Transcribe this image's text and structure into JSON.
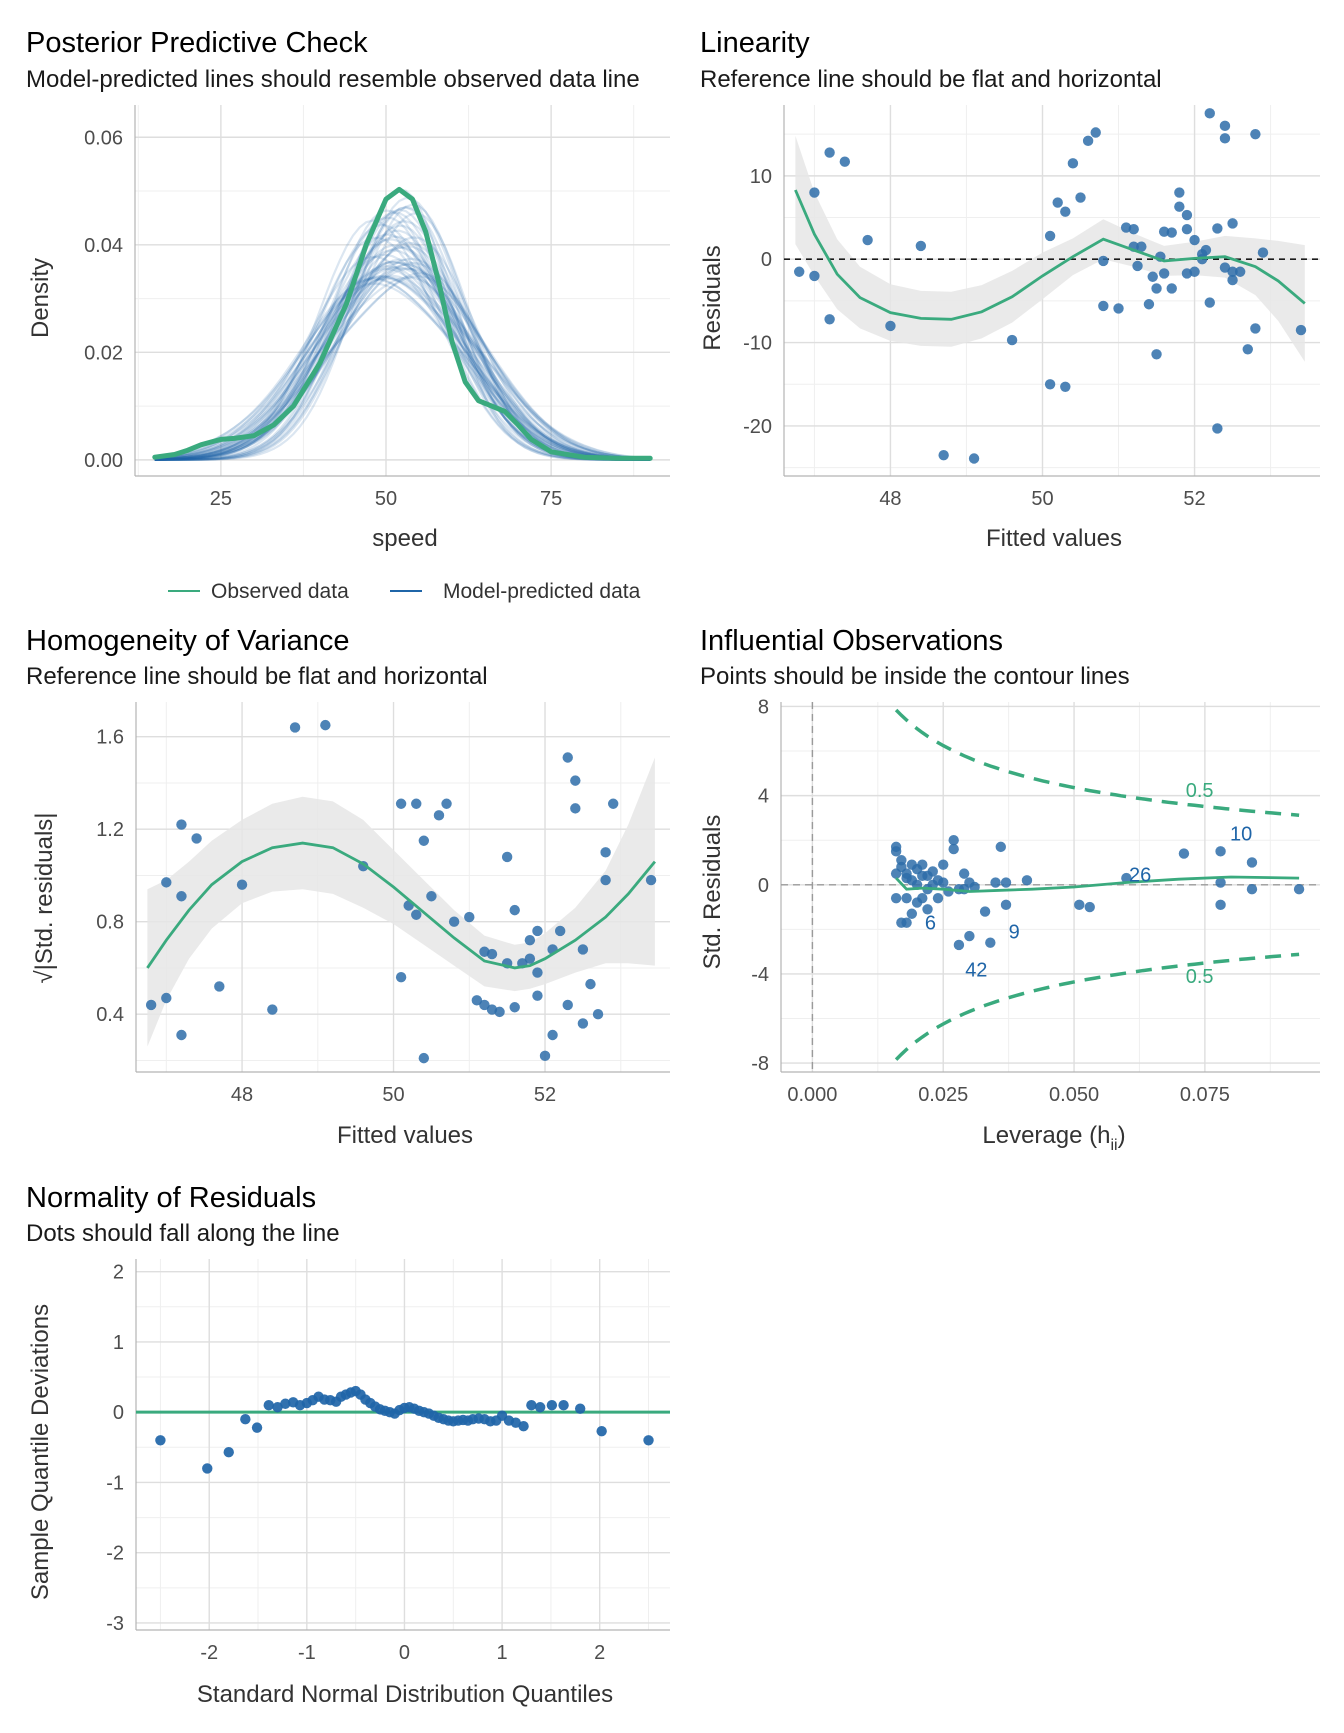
{
  "colors": {
    "observed": "#3aaa7e",
    "predicted": "#1f65a8",
    "points": "#2e6da9",
    "ribbon": "#e6e6e6",
    "reference": "#1a1a1a"
  },
  "chart_data": [
    {
      "id": "ppc",
      "type": "line",
      "title": "Posterior Predictive Check",
      "subtitle": "Model-predicted lines should resemble observed data line",
      "xlabel": "speed",
      "ylabel": "Density",
      "xlim": [
        12,
        93
      ],
      "ylim": [
        -0.003,
        0.066
      ],
      "xticks": [
        25,
        50,
        75
      ],
      "xtick_labels": [
        "25",
        "50",
        "75"
      ],
      "yticks": [
        0.0,
        0.02,
        0.04,
        0.06
      ],
      "ytick_labels": [
        "0.00",
        "0.02",
        "0.04",
        "0.06"
      ],
      "grid": true,
      "legend": {
        "position": "bottom",
        "entries": [
          {
            "label": "Observed data",
            "color": "#3aaa7e"
          },
          {
            "label": "Model-predicted data",
            "color": "#1f65a8"
          }
        ]
      },
      "observed": {
        "name": "Observed data",
        "x": [
          15,
          18,
          20,
          22,
          24,
          25,
          27,
          30,
          33,
          36,
          40,
          44,
          47,
          50,
          52,
          54,
          56,
          58,
          60,
          62,
          64,
          66,
          68,
          70,
          72,
          75,
          80,
          85,
          90
        ],
        "y": [
          0.0005,
          0.001,
          0.0018,
          0.0028,
          0.0035,
          0.0038,
          0.004,
          0.0045,
          0.0065,
          0.01,
          0.018,
          0.029,
          0.04,
          0.0485,
          0.0503,
          0.0485,
          0.0425,
          0.033,
          0.022,
          0.0145,
          0.011,
          0.01,
          0.009,
          0.0065,
          0.0038,
          0.0015,
          0.0005,
          0.0003,
          0.0003
        ]
      },
      "predicted": {
        "name": "Model-predicted data",
        "n_draws": 50,
        "typical_mean": 51.5,
        "typical_sd": 10.2
      }
    },
    {
      "id": "linearity",
      "type": "scatter",
      "title": "Linearity",
      "subtitle": "Reference line should be flat and horizontal",
      "xlabel": "Fitted values",
      "ylabel": "Residuals",
      "xlim": [
        46.6,
        53.65
      ],
      "ylim": [
        -26,
        18.5
      ],
      "xticks": [
        48,
        50,
        52
      ],
      "xtick_labels": [
        "48",
        "50",
        "52"
      ],
      "yticks": [
        -20,
        -10,
        0,
        10
      ],
      "ytick_labels": [
        "-20",
        "-10",
        "0",
        "10"
      ],
      "reference_line": 0,
      "points": {
        "x": [
          46.8,
          47.0,
          47.0,
          47.2,
          47.2,
          47.4,
          47.7,
          48.0,
          48.4,
          48.7,
          49.1,
          49.6,
          50.1,
          50.1,
          50.2,
          50.3,
          50.3,
          50.4,
          50.5,
          50.6,
          50.7,
          50.8,
          50.8,
          51.0,
          51.1,
          51.2,
          51.2,
          51.3,
          51.4,
          51.5,
          51.5,
          51.6,
          51.6,
          51.7,
          51.7,
          51.8,
          51.8,
          51.9,
          51.9,
          51.9,
          52.0,
          52.1,
          52.1,
          52.2,
          52.2,
          52.3,
          52.3,
          52.4,
          52.4,
          52.4,
          52.5,
          52.5,
          52.5,
          52.6,
          52.7,
          52.8,
          52.8,
          52.9,
          53.4,
          51.25,
          51.45,
          51.55,
          52.0,
          52.15
        ],
        "y": [
          -1.5,
          8.0,
          -2.0,
          12.8,
          -7.2,
          11.7,
          2.3,
          -8.0,
          1.6,
          -23.5,
          -23.9,
          -9.7,
          2.8,
          -15.0,
          6.8,
          5.7,
          -15.3,
          11.5,
          7.4,
          14.2,
          15.2,
          -5.6,
          -0.2,
          -5.9,
          3.8,
          1.5,
          3.6,
          1.5,
          -5.4,
          -11.4,
          -3.5,
          3.3,
          -1.7,
          3.2,
          -3.5,
          8.0,
          6.3,
          5.3,
          3.6,
          -1.7,
          -1.5,
          0.0,
          0.6,
          -5.2,
          17.5,
          3.7,
          -20.3,
          14.5,
          -1.0,
          16.0,
          4.3,
          -1.5,
          -2.5,
          -1.5,
          -10.8,
          -8.3,
          15.0,
          0.8,
          -8.5,
          -0.8,
          -2.1,
          0.3,
          2.3,
          1.1
        ]
      },
      "smooth": {
        "x": [
          46.75,
          47.0,
          47.3,
          47.6,
          48.0,
          48.4,
          48.8,
          49.2,
          49.6,
          50.0,
          50.4,
          50.8,
          51.2,
          51.6,
          52.0,
          52.4,
          52.8,
          53.1,
          53.45
        ],
        "y": [
          8.3,
          3.0,
          -1.8,
          -4.6,
          -6.4,
          -7.1,
          -7.2,
          -6.3,
          -4.5,
          -2.0,
          0.3,
          2.4,
          1.1,
          -0.2,
          0.1,
          0.3,
          -0.9,
          -2.6,
          -5.3
        ],
        "se": [
          6.5,
          5.0,
          4.2,
          3.7,
          3.4,
          3.3,
          3.3,
          3.2,
          3.1,
          2.8,
          2.2,
          2.4,
          2.0,
          1.8,
          2.0,
          2.5,
          3.4,
          4.8,
          7.0
        ]
      }
    },
    {
      "id": "homogeneity",
      "type": "scatter",
      "title": "Homogeneity of Variance",
      "subtitle": "Reference line should be flat and horizontal",
      "xlabel": "Fitted values",
      "ylabel": "√|Std. residuals|",
      "xlim": [
        46.6,
        53.65
      ],
      "ylim": [
        0.15,
        1.75
      ],
      "xticks": [
        48,
        50,
        52
      ],
      "xtick_labels": [
        "48",
        "50",
        "52"
      ],
      "yticks": [
        0.4,
        0.8,
        1.2,
        1.6
      ],
      "ytick_labels": [
        "0.4",
        "0.8",
        "1.2",
        "1.6"
      ],
      "points": {
        "x": [
          46.8,
          47.0,
          47.0,
          47.2,
          47.2,
          47.2,
          47.4,
          47.7,
          48.0,
          48.4,
          48.7,
          49.1,
          49.6,
          50.1,
          50.1,
          50.2,
          50.3,
          50.3,
          50.4,
          50.4,
          50.5,
          50.6,
          50.7,
          50.8,
          51.0,
          51.1,
          51.2,
          51.2,
          51.3,
          51.3,
          51.4,
          51.5,
          51.5,
          51.6,
          51.6,
          51.7,
          51.8,
          51.8,
          51.9,
          51.9,
          51.9,
          52.0,
          52.1,
          52.1,
          52.2,
          52.3,
          52.3,
          52.4,
          52.4,
          52.5,
          52.5,
          52.6,
          52.7,
          52.8,
          52.8,
          52.9,
          53.4
        ],
        "y": [
          0.44,
          0.47,
          0.97,
          0.31,
          0.91,
          1.22,
          1.16,
          0.52,
          0.96,
          0.42,
          1.64,
          1.65,
          1.04,
          0.56,
          1.31,
          0.87,
          1.31,
          0.83,
          0.21,
          1.15,
          0.91,
          1.26,
          1.31,
          0.8,
          0.82,
          0.46,
          0.44,
          0.67,
          0.42,
          0.66,
          0.41,
          1.08,
          0.62,
          0.43,
          0.85,
          0.62,
          0.72,
          0.64,
          0.48,
          0.58,
          0.76,
          0.22,
          0.31,
          0.68,
          0.76,
          1.51,
          0.44,
          1.41,
          1.29,
          0.68,
          0.36,
          0.53,
          0.4,
          1.1,
          0.98,
          1.31,
          0.98
        ]
      },
      "smooth": {
        "x": [
          46.75,
          47.0,
          47.3,
          47.6,
          48.0,
          48.4,
          48.8,
          49.2,
          49.6,
          50.0,
          50.4,
          50.8,
          51.2,
          51.6,
          51.8,
          52.0,
          52.4,
          52.8,
          53.1,
          53.45
        ],
        "y": [
          0.6,
          0.72,
          0.85,
          0.96,
          1.06,
          1.12,
          1.14,
          1.12,
          1.05,
          0.95,
          0.84,
          0.73,
          0.63,
          0.6,
          0.61,
          0.64,
          0.72,
          0.82,
          0.92,
          1.06
        ],
        "se": [
          0.34,
          0.26,
          0.21,
          0.19,
          0.18,
          0.19,
          0.2,
          0.2,
          0.19,
          0.16,
          0.14,
          0.12,
          0.11,
          0.1,
          0.1,
          0.11,
          0.14,
          0.2,
          0.3,
          0.45
        ]
      }
    },
    {
      "id": "influence",
      "type": "scatter",
      "title": "Influential Observations",
      "subtitle": "Points should be inside the contour lines",
      "xlabel": "Leverage (h",
      "xlabel_sub": "ii",
      "xlabel_suffix": ")",
      "ylabel": "Std. Residuals",
      "xlim": [
        -0.006,
        0.097
      ],
      "ylim": [
        -8.4,
        8.2
      ],
      "xticks": [
        0.0,
        0.025,
        0.05,
        0.075
      ],
      "xtick_labels": [
        "0.000",
        "0.025",
        "0.050",
        "0.075"
      ],
      "yticks": [
        -8,
        -4,
        0,
        4,
        8
      ],
      "ytick_labels": [
        "-8",
        "-4",
        "0",
        "4",
        "8"
      ],
      "contour_label": "0.5",
      "points": {
        "x": [
          0.016,
          0.016,
          0.016,
          0.016,
          0.017,
          0.017,
          0.017,
          0.018,
          0.018,
          0.018,
          0.019,
          0.019,
          0.019,
          0.02,
          0.02,
          0.021,
          0.021,
          0.021,
          0.022,
          0.022,
          0.022,
          0.023,
          0.023,
          0.024,
          0.025,
          0.025,
          0.026,
          0.027,
          0.027,
          0.028,
          0.028,
          0.029,
          0.029,
          0.03,
          0.03,
          0.031,
          0.033,
          0.034,
          0.035,
          0.036,
          0.037,
          0.037,
          0.041,
          0.051,
          0.053,
          0.06,
          0.071,
          0.078,
          0.078,
          0.078,
          0.084,
          0.084,
          0.093,
          0.018,
          0.02,
          0.024
        ],
        "y": [
          1.7,
          1.5,
          0.5,
          -0.6,
          0.8,
          -1.7,
          1.1,
          0.3,
          -0.6,
          -1.7,
          0.9,
          -1.3,
          0.2,
          0.7,
          0.0,
          -0.6,
          0.4,
          0.9,
          -1.1,
          0.4,
          -0.2,
          0.6,
          0.0,
          -0.6,
          0.1,
          0.9,
          -0.3,
          1.6,
          2.0,
          -0.2,
          -2.7,
          0.5,
          -0.2,
          0.1,
          -2.3,
          -0.1,
          -1.2,
          -2.6,
          0.1,
          1.7,
          -0.9,
          0.1,
          0.2,
          -0.9,
          -1.0,
          0.3,
          1.4,
          1.5,
          0.1,
          -0.9,
          1.0,
          -0.2,
          -0.2,
          0.5,
          -0.8,
          0.2
        ]
      },
      "labels": [
        {
          "text": "6",
          "x": 0.0215,
          "y": -1.7
        },
        {
          "text": "9",
          "x": 0.0375,
          "y": -2.1
        },
        {
          "text": "42",
          "x": 0.0292,
          "y": -3.8
        },
        {
          "text": "26",
          "x": 0.0605,
          "y": 0.45
        },
        {
          "text": "10",
          "x": 0.0798,
          "y": 2.3
        }
      ],
      "smooth": {
        "x": [
          0.016,
          0.018,
          0.021,
          0.025,
          0.03,
          0.036,
          0.042,
          0.05,
          0.06,
          0.07,
          0.08,
          0.093
        ],
        "y": [
          0.3,
          -0.2,
          -0.15,
          -0.2,
          -0.3,
          -0.25,
          -0.2,
          -0.1,
          0.1,
          0.25,
          0.35,
          0.3
        ]
      }
    },
    {
      "id": "normality",
      "type": "scatter",
      "title": "Normality of Residuals",
      "subtitle": "Dots should fall along the line",
      "xlabel": "Standard Normal Distribution Quantiles",
      "ylabel": "Sample Quantile Deviations",
      "xlim": [
        -2.75,
        2.72
      ],
      "ylim": [
        -3.1,
        2.18
      ],
      "xticks": [
        -2,
        -1,
        0,
        1,
        2
      ],
      "xtick_labels": [
        "-2",
        "-1",
        "0",
        "1",
        "2"
      ],
      "yticks": [
        -3,
        -2,
        -1,
        0,
        1,
        2
      ],
      "ytick_labels": [
        "-3",
        "-2",
        "-1",
        "0",
        "1",
        "2"
      ],
      "reference_line": 0,
      "points": {
        "x": [
          -2.5,
          -2.02,
          -1.8,
          -1.63,
          -1.51,
          -1.39,
          -1.3,
          -1.22,
          -1.14,
          -1.07,
          -1.0,
          -0.94,
          -0.88,
          -0.82,
          -0.76,
          -0.7,
          -0.65,
          -0.6,
          -0.55,
          -0.5,
          -0.45,
          -0.4,
          -0.35,
          -0.3,
          -0.25,
          -0.2,
          -0.15,
          -0.1,
          -0.05,
          0.0,
          0.05,
          0.1,
          0.15,
          0.2,
          0.25,
          0.3,
          0.35,
          0.4,
          0.45,
          0.5,
          0.55,
          0.6,
          0.65,
          0.7,
          0.76,
          0.82,
          0.88,
          0.94,
          1.0,
          1.07,
          1.14,
          1.22,
          1.3,
          1.39,
          1.51,
          1.63,
          1.8,
          2.02,
          2.5
        ],
        "y": [
          -0.4,
          -0.8,
          -0.57,
          -0.1,
          -0.22,
          0.1,
          0.07,
          0.12,
          0.14,
          0.1,
          0.13,
          0.17,
          0.22,
          0.18,
          0.17,
          0.15,
          0.22,
          0.25,
          0.28,
          0.3,
          0.25,
          0.18,
          0.13,
          0.08,
          0.04,
          0.02,
          0.0,
          -0.02,
          0.03,
          0.06,
          0.07,
          0.05,
          0.02,
          0.0,
          -0.02,
          -0.05,
          -0.08,
          -0.1,
          -0.12,
          -0.13,
          -0.12,
          -0.11,
          -0.12,
          -0.1,
          -0.09,
          -0.1,
          -0.13,
          -0.12,
          -0.05,
          -0.12,
          -0.15,
          -0.2,
          0.1,
          0.07,
          0.1,
          0.1,
          0.05,
          -0.27,
          -0.4
        ]
      }
    }
  ]
}
